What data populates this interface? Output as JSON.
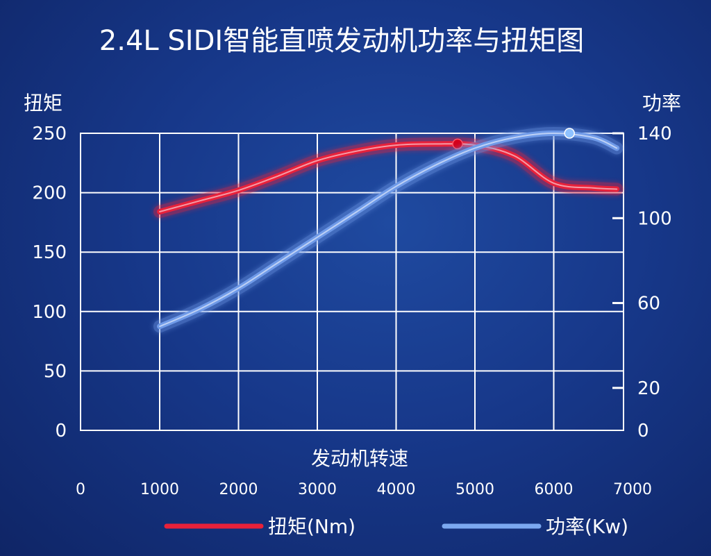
{
  "chart_data": {
    "type": "line",
    "title": "2.4L SIDI智能直喷发动机功率与扭矩图",
    "xlabel": "发动机转速",
    "ylabel_left": "扭矩",
    "ylabel_right": "功率",
    "x_ticks": [
      "0",
      "1000",
      "2000",
      "3000",
      "4000",
      "5000",
      "6000",
      "7000"
    ],
    "y_left_ticks": [
      "0",
      "50",
      "100",
      "150",
      "200",
      "250"
    ],
    "y_right_ticks": [
      "0",
      "20",
      "60",
      "100",
      "140"
    ],
    "ylim_left": [
      0,
      250
    ],
    "ylim_right": [
      0,
      140
    ],
    "xlim": [
      0,
      7000
    ],
    "grid": true,
    "legend_position": "bottom",
    "series": [
      {
        "name": "扭矩(Nm)",
        "axis": "left",
        "color": "#e8213a",
        "x": [
          1000,
          1500,
          2000,
          2500,
          3000,
          3500,
          4000,
          4500,
          5000,
          5500,
          6000,
          6500,
          6800
        ],
        "values": [
          184,
          193,
          202,
          214,
          227,
          235,
          240,
          241,
          240,
          231,
          208,
          204,
          203
        ],
        "peak": {
          "x": 4780,
          "value": 241
        }
      },
      {
        "name": "功率(Kw)",
        "axis": "right",
        "color": "#6f9ae8",
        "x": [
          1000,
          1500,
          2000,
          2500,
          3000,
          3500,
          4000,
          4500,
          5000,
          5500,
          6000,
          6500,
          6800
        ],
        "values": [
          49,
          57,
          67,
          79,
          91,
          103,
          115,
          125,
          133,
          138,
          140,
          138,
          133
        ],
        "peak": {
          "x": 6200,
          "value": 140
        }
      }
    ]
  }
}
